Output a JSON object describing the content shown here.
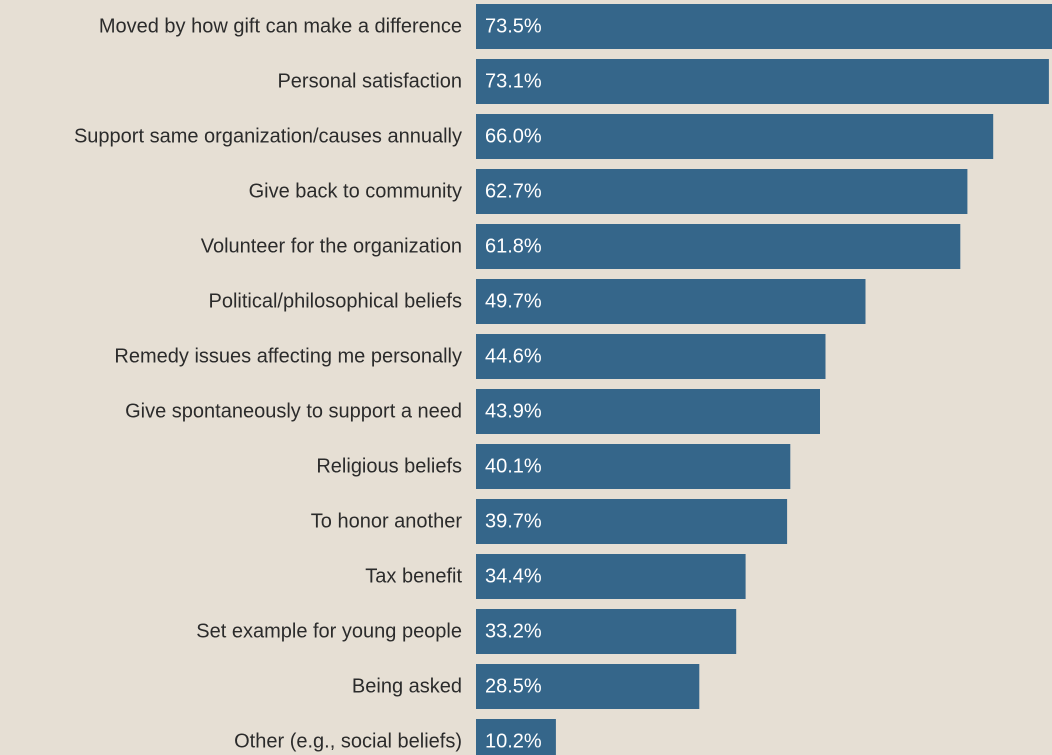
{
  "chart_data": {
    "type": "bar",
    "orientation": "horizontal",
    "title": "",
    "xlabel": "",
    "ylabel": "",
    "xlim": [
      0,
      73.5
    ],
    "grid": false,
    "legend": "none",
    "bar_color": "#35668a",
    "background_color": "#e6dfd4",
    "label_color": "#2b2b2b",
    "value_label_color": "#ffffff",
    "categories": [
      "Moved by how gift can make a difference",
      "Personal satisfaction",
      "Support same organization/causes annually",
      "Give back to community",
      "Volunteer for the organization",
      "Political/philosophical beliefs",
      "Remedy issues affecting me personally",
      "Give spontaneously to support a need",
      "Religious beliefs",
      "To honor another",
      "Tax benefit",
      "Set example for young people",
      "Being asked",
      "Other (e.g., social beliefs)"
    ],
    "values": [
      73.5,
      73.1,
      66.0,
      62.7,
      61.8,
      49.7,
      44.6,
      43.9,
      40.1,
      39.7,
      34.4,
      33.2,
      28.5,
      10.2
    ],
    "value_labels": [
      "73.5%",
      "73.1%",
      "66.0%",
      "62.7%",
      "61.8%",
      "49.7%",
      "44.6%",
      "43.9%",
      "40.1%",
      "39.7%",
      "34.4%",
      "33.2%",
      "28.5%",
      "10.2%"
    ]
  }
}
